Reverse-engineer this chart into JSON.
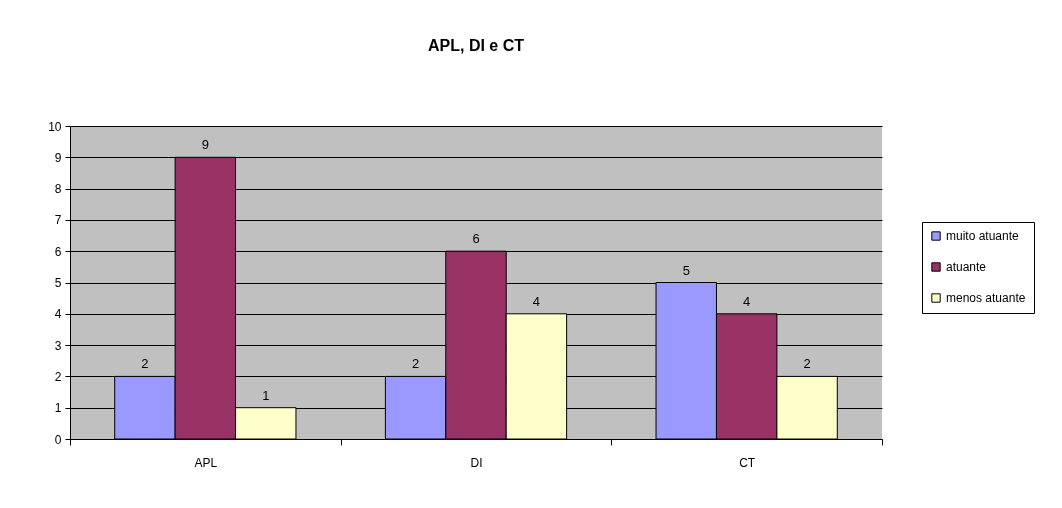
{
  "chart_data": {
    "type": "bar",
    "title": "APL, DI e CT",
    "categories": [
      "APL",
      "DI",
      "CT"
    ],
    "series": [
      {
        "name": "muito atuante",
        "color": "#9999ff",
        "values": [
          2,
          2,
          5
        ]
      },
      {
        "name": "atuante",
        "color": "#993366",
        "values": [
          9,
          6,
          4
        ]
      },
      {
        "name": "menos atuante",
        "color": "#ffffcc",
        "values": [
          1,
          4,
          2
        ]
      }
    ],
    "ylim": [
      0,
      10
    ],
    "yticks": [
      0,
      1,
      2,
      3,
      4,
      5,
      6,
      7,
      8,
      9,
      10
    ],
    "grid": "y",
    "legend": "right",
    "data_labels": true
  }
}
